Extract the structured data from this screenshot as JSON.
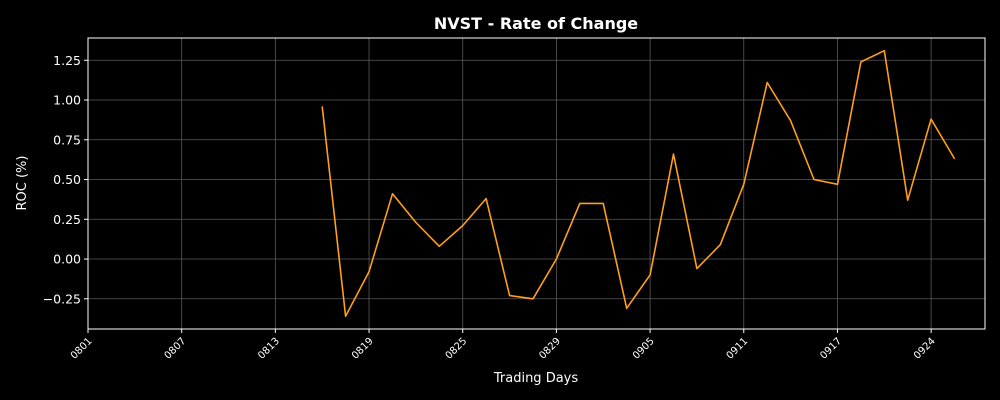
{
  "chart_data": {
    "type": "line",
    "title": "NVST - Rate of Change",
    "xlabel": "Trading Days",
    "ylabel": "ROC (%)",
    "ylim": [
      -0.44,
      1.39
    ],
    "grid": true,
    "colors": {
      "background": "#000000",
      "line": "#ff9f1a",
      "grid": "#5a5a5a",
      "text": "#ffffff"
    },
    "x_tick_labels": [
      "0801",
      "0807",
      "0813",
      "0819",
      "0825",
      "0829",
      "0905",
      "0911",
      "0917",
      "0924"
    ],
    "x_tick_index": [
      0,
      4,
      8,
      12,
      16,
      20,
      24,
      28,
      32,
      36
    ],
    "x_range": [
      0,
      38.3
    ],
    "y_ticks": [
      -0.25,
      0.0,
      0.25,
      0.5,
      0.75,
      1.0,
      1.25
    ],
    "y_tick_labels": [
      "−0.25",
      "0.00",
      "0.25",
      "0.50",
      "0.75",
      "1.00",
      "1.25"
    ],
    "series": [
      {
        "x": [
          10,
          11,
          12,
          13,
          14,
          15,
          16,
          17,
          18,
          19,
          20,
          21,
          22,
          23,
          24,
          25,
          26,
          27,
          28,
          29,
          30,
          31,
          32,
          33,
          34,
          35,
          36,
          37
        ],
        "values": [
          0.96,
          -0.36,
          -0.08,
          0.41,
          0.23,
          0.08,
          0.21,
          0.38,
          -0.23,
          -0.25,
          0.0,
          0.35,
          0.35,
          -0.31,
          -0.1,
          0.66,
          -0.06,
          0.09,
          0.47,
          1.11,
          0.87,
          0.5,
          0.47,
          1.24,
          1.31,
          0.37,
          0.88,
          0.63
        ]
      }
    ]
  }
}
